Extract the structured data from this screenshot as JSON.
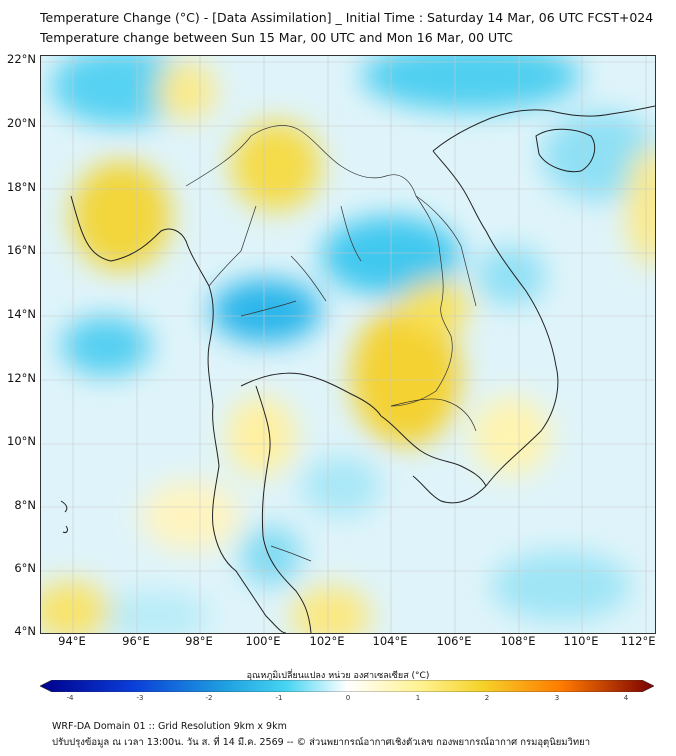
{
  "title_line1": "Temperature Change (°C) - [Data Assimilation] _ Initial Time : Saturday 14 Mar, 06 UTC FCST+024",
  "title_line2": "Temperature change between Sun 15 Mar, 00 UTC and Mon 16 Mar, 00 UTC",
  "lat_labels": [
    "22°N",
    "20°N",
    "18°N",
    "16°N",
    "14°N",
    "12°N",
    "10°N",
    "8°N",
    "6°N",
    "4°N"
  ],
  "lon_labels": [
    "94°E",
    "96°E",
    "98°E",
    "100°E",
    "102°E",
    "104°E",
    "106°E",
    "108°E",
    "110°E",
    "112°E"
  ],
  "colorbar": {
    "label": "อุณหภูมิเปลี่ยนแปลง หน่วย องศาเซลเซียส (°C)",
    "ticks": [
      "-4",
      "-3",
      "-2",
      "-1",
      "0",
      "1",
      "2",
      "3",
      "4"
    ],
    "min": -4,
    "max": 4
  },
  "footer_line1": "WRF-DA Domain 01 :: Grid Resolution 9km x 9km",
  "footer_line2": "ปรับปรุงข้อมูล ณ เวลา 13:00น. วัน ส. ที่ 14 มี.ค. 2569 -- © ส่วนพยากรณ์อากาศเชิงตัวเลข กองพยากรณ์อากาศ กรมอุตุนิยมวิทยา",
  "colors": {
    "cold_strong": "#00008b",
    "cold": "#1f9fe0",
    "cool": "#3fd0f0",
    "light_cool": "#b8ecf8",
    "neutral": "#ffffff",
    "light_warm": "#fffac0",
    "warm": "#f5dc2a",
    "hot": "#ff8c00",
    "hot_strong": "#7a0000",
    "coast": "#222222",
    "border": "#333333",
    "grid": "#c8c8c8"
  }
}
